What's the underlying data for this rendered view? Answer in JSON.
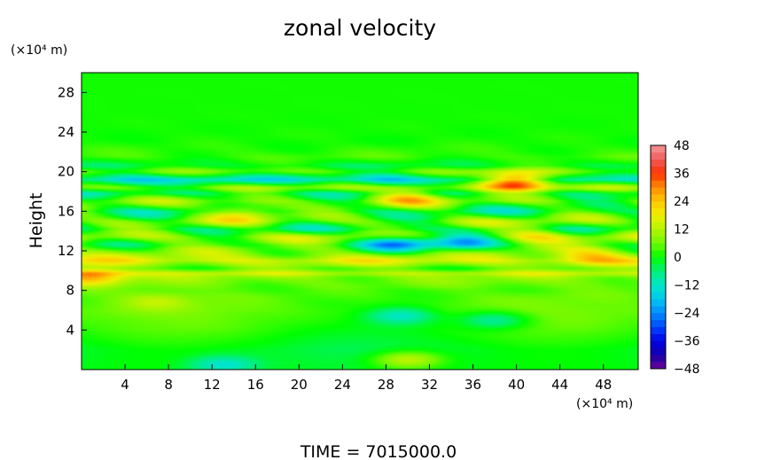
{
  "chart_data": {
    "type": "heatmap",
    "title": "zonal velocity",
    "ylabel": "Height",
    "y_unit_label": "(×10⁴ m)",
    "x_unit_label": "(×10⁴ m)",
    "xlim": [
      0,
      51.2
    ],
    "ylim": [
      0,
      30
    ],
    "x_ticks": [
      4,
      8,
      12,
      16,
      20,
      24,
      28,
      32,
      36,
      40,
      44,
      48
    ],
    "y_ticks": [
      4,
      8,
      12,
      16,
      20,
      24,
      28
    ],
    "colorbar": {
      "min": -48,
      "max": 48,
      "ticks": [
        48,
        36,
        24,
        12,
        0,
        -12,
        -24,
        -36,
        -48
      ],
      "tick_labels": [
        "48",
        "36",
        "24",
        "12",
        "0",
        "−12",
        "−24",
        "−36",
        "−48"
      ]
    },
    "vertical_profile": [
      {
        "y": 0.0,
        "v": -1
      },
      {
        "y": 2.0,
        "v": -2
      },
      {
        "y": 4.0,
        "v": 2
      },
      {
        "y": 6.0,
        "v": 5
      },
      {
        "y": 8.0,
        "v": 4
      },
      {
        "y": 9.3,
        "v": 8
      },
      {
        "y": 9.7,
        "v": 14
      },
      {
        "y": 10.2,
        "v": 4
      },
      {
        "y": 11.0,
        "v": 16
      },
      {
        "y": 11.8,
        "v": 8
      },
      {
        "y": 12.6,
        "v": 2
      },
      {
        "y": 13.4,
        "v": 10
      },
      {
        "y": 14.2,
        "v": -2
      },
      {
        "y": 15.0,
        "v": 7
      },
      {
        "y": 16.0,
        "v": -3
      },
      {
        "y": 17.0,
        "v": 6
      },
      {
        "y": 17.8,
        "v": -4
      },
      {
        "y": 18.4,
        "v": 8
      },
      {
        "y": 19.2,
        "v": -12
      },
      {
        "y": 20.0,
        "v": 6
      },
      {
        "y": 20.6,
        "v": -2
      },
      {
        "y": 21.5,
        "v": 3
      },
      {
        "y": 23.0,
        "v": 1
      },
      {
        "y": 30.0,
        "v": 1
      }
    ],
    "features": [
      {
        "x": 40.0,
        "y": 19.0,
        "v": 36
      },
      {
        "x": 47.0,
        "y": 11.5,
        "v": 24
      },
      {
        "x": 0.8,
        "y": 9.5,
        "v": 34
      },
      {
        "x": 30.0,
        "y": 1.0,
        "v": 14
      },
      {
        "x": 13.0,
        "y": 0.5,
        "v": -14
      },
      {
        "x": 29.5,
        "y": 5.5,
        "v": -10
      },
      {
        "x": 38.0,
        "y": 5.0,
        "v": -9
      },
      {
        "x": 7.0,
        "y": 7.0,
        "v": 12
      },
      {
        "x": 29.0,
        "y": 12.8,
        "v": -20
      },
      {
        "x": 35.0,
        "y": 12.8,
        "v": -18
      },
      {
        "x": 30.0,
        "y": 17.5,
        "v": 20
      },
      {
        "x": 28.0,
        "y": 19.2,
        "v": -20
      },
      {
        "x": 4.0,
        "y": 19.2,
        "v": -18
      },
      {
        "x": 42.0,
        "y": 13.8,
        "v": 16
      },
      {
        "x": 15.0,
        "y": 16.0,
        "v": 14
      }
    ]
  },
  "footer": {
    "time_label": "TIME = 7015000.0"
  }
}
